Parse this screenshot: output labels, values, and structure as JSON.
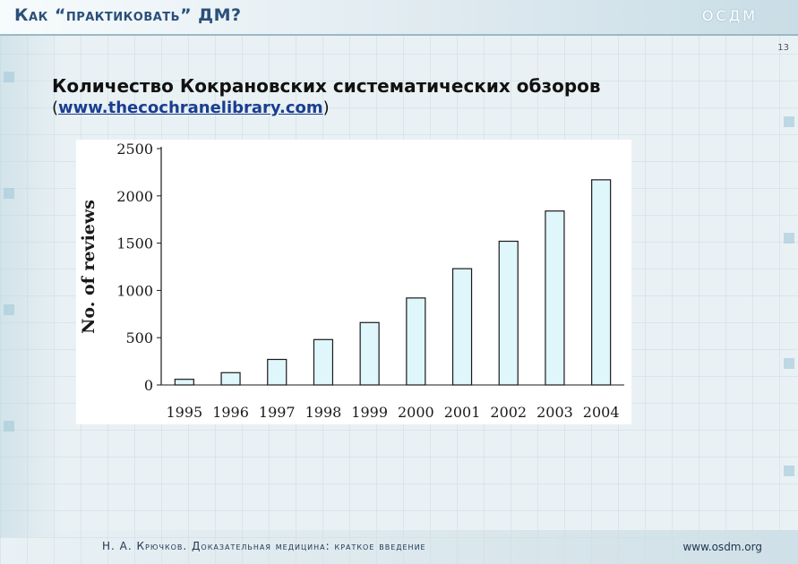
{
  "header": {
    "title": "Как “практиковать” ДМ?",
    "logo": "ОСДМ"
  },
  "page_number": "13",
  "slide": {
    "title": "Количество Кокрановских систематических обзоров",
    "subtitle_open": "(",
    "subtitle_link": "www.thecochranelibrary.com",
    "subtitle_close": ")"
  },
  "footer": {
    "author_text": "Н. А. Крючков. Доказательная медицина: краткое введение",
    "url": "www.osdm.org"
  },
  "colors": {
    "bar_fill": "#dff6fb",
    "bar_stroke": "#1a1a1a",
    "header_text": "#2a4f7a",
    "link": "#1a3d8f"
  },
  "chart_data": {
    "type": "bar",
    "title": "",
    "xlabel": "",
    "ylabel": "No. of reviews",
    "categories": [
      "1995",
      "1996",
      "1997",
      "1998",
      "1999",
      "2000",
      "2001",
      "2002",
      "2003",
      "2004"
    ],
    "values": [
      60,
      130,
      270,
      480,
      660,
      920,
      1230,
      1520,
      1840,
      2170
    ],
    "ylim": [
      0,
      2500
    ],
    "yticks": [
      0,
      500,
      1000,
      1500,
      2000,
      2500
    ],
    "grid": false,
    "legend": "none"
  }
}
